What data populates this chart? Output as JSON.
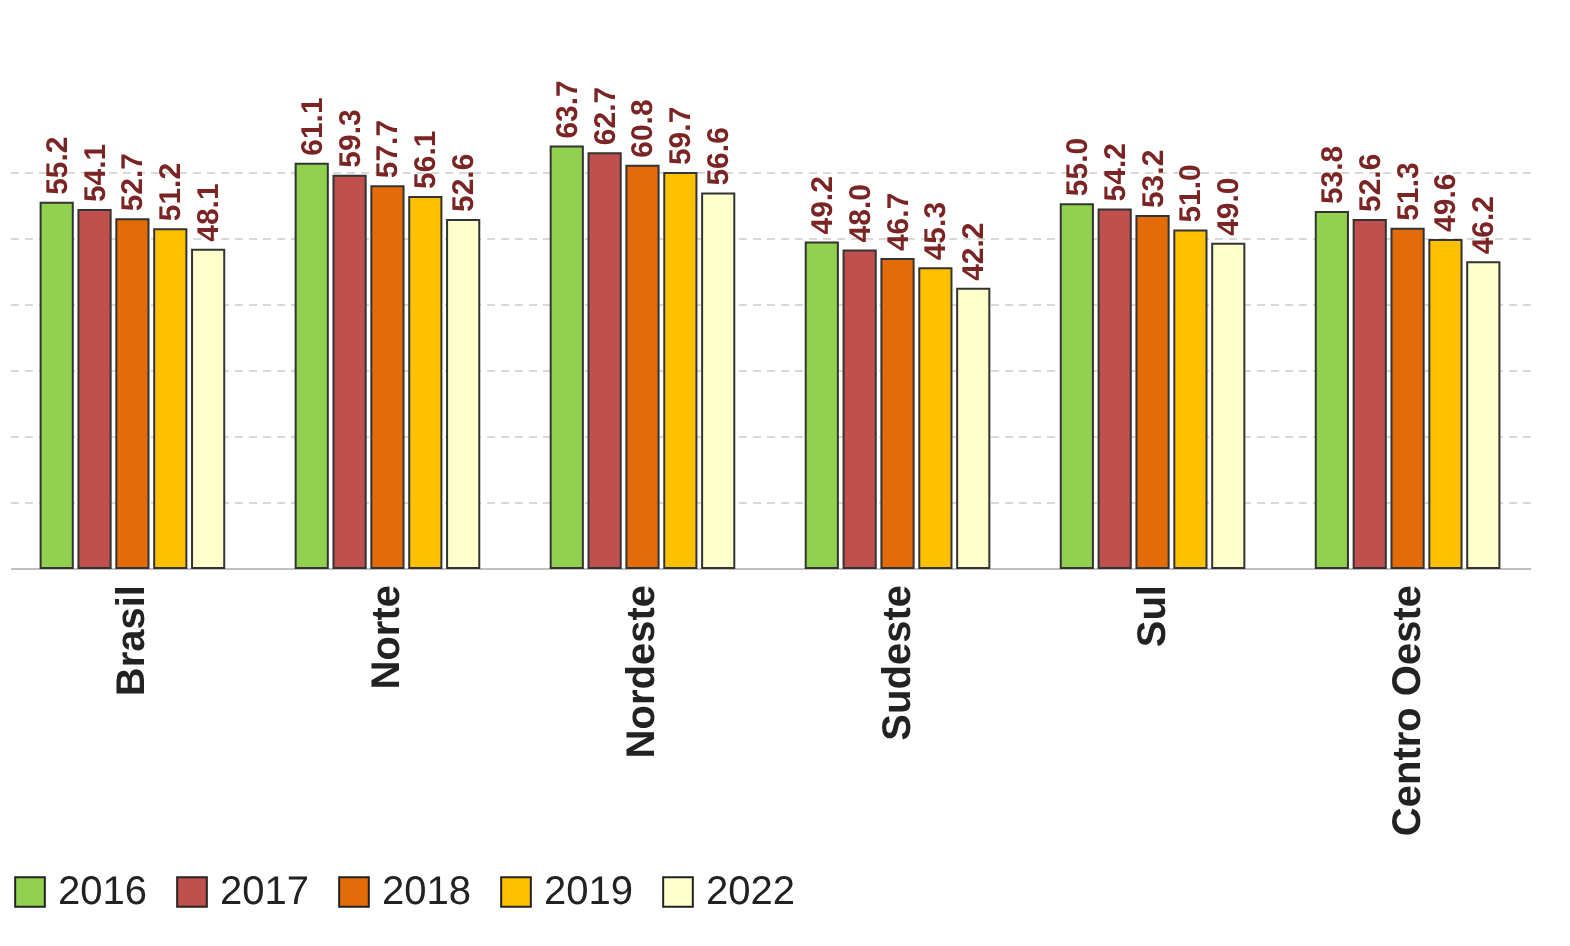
{
  "chart_data": {
    "type": "bar",
    "categories": [
      "Brasil",
      "Norte",
      "Nordeste",
      "Sudeste",
      "Sul",
      "Centro Oeste"
    ],
    "series": [
      {
        "name": "2016",
        "color": "#92d050",
        "values": [
          55.2,
          61.1,
          63.7,
          49.2,
          55.0,
          53.8
        ],
        "value_labels": [
          "55.2",
          "61.1",
          "63.7",
          "49.2",
          "55.0",
          "53.8"
        ]
      },
      {
        "name": "2017",
        "color": "#c0504d",
        "values": [
          54.1,
          59.3,
          62.7,
          48.0,
          54.2,
          52.6
        ],
        "value_labels": [
          "54.1",
          "59.3",
          "62.7",
          "48.0",
          "54.2",
          "52.6"
        ]
      },
      {
        "name": "2018",
        "color": "#e36c09",
        "values": [
          52.7,
          57.7,
          60.8,
          46.7,
          53.2,
          51.3
        ],
        "value_labels": [
          "52.7",
          "57.7",
          "60.8",
          "46.7",
          "53.2",
          "51.3"
        ]
      },
      {
        "name": "2019",
        "color": "#ffc000",
        "values": [
          51.2,
          56.1,
          59.7,
          45.3,
          51.0,
          49.6
        ],
        "value_labels": [
          "51.2",
          "56.1",
          "59.7",
          "45.3",
          "51.0",
          "49.6"
        ]
      },
      {
        "name": "2022",
        "color": "#ffffcc",
        "values": [
          48.1,
          52.6,
          56.6,
          42.2,
          49.0,
          46.2
        ],
        "value_labels": [
          "48.1",
          "52.6",
          "56.6",
          "42.2",
          "49.0",
          "46.2"
        ]
      }
    ],
    "tick_labels": "x",
    "grid": "y",
    "legend": "bottom"
  }
}
